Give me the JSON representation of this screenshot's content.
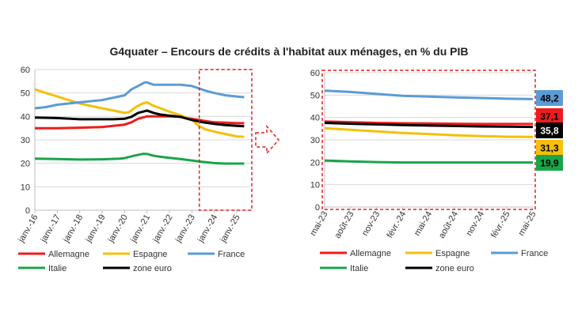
{
  "title": "G4quater – Encours de crédits à l'habitat aux ménages, en % du PIB",
  "colors": {
    "Allemagne": "#ee1c1c",
    "Espagne": "#f5bf0b",
    "France": "#5b9bd5",
    "Italie": "#19a54a",
    "zone euro": "#000000",
    "highlight_box": "#e02020",
    "arrow": "#e02020"
  },
  "chart_data": [
    {
      "type": "line",
      "ylim": [
        0,
        60
      ],
      "yticks": [
        "0",
        "10",
        "20",
        "30",
        "40",
        "50",
        "60"
      ],
      "xlabels": [
        "janv.-16",
        "janv.-17",
        "janv.-18",
        "janv.-19",
        "janv.-20",
        "janv.-21",
        "janv.-22",
        "janv.-23",
        "janv.-24",
        "janv.-25"
      ],
      "xrange": [
        2016.0,
        2025.67
      ],
      "grid": true,
      "highlight_range": [
        2023.33,
        2025.67
      ],
      "series": [
        {
          "name": "Allemagne",
          "x": [
            2016,
            2017,
            2018,
            2019,
            2019.5,
            2020,
            2020.3,
            2020.6,
            2021,
            2021.5,
            2022,
            2022.5,
            2023,
            2023.5,
            2024,
            2024.5,
            2025,
            2025.33
          ],
          "y": [
            35,
            35,
            35.2,
            35.5,
            36,
            36.5,
            37.5,
            39,
            40,
            40,
            40,
            39.8,
            39,
            38.2,
            37.5,
            37.3,
            37.1,
            37.1
          ]
        },
        {
          "name": "Espagne",
          "x": [
            2016,
            2016.5,
            2017,
            2017.5,
            2018,
            2018.5,
            2019,
            2019.5,
            2020,
            2020.2,
            2020.5,
            2020.8,
            2021,
            2021.3,
            2021.6,
            2022,
            2022.5,
            2023,
            2023.3,
            2023.6,
            2024,
            2024.5,
            2025,
            2025.33
          ],
          "y": [
            51.5,
            50,
            48.5,
            47,
            45.5,
            44.5,
            43.5,
            42.5,
            41.5,
            41.8,
            44,
            45.5,
            46,
            44.5,
            43.5,
            42,
            40.5,
            38.5,
            36,
            34.5,
            33.5,
            32.5,
            31.5,
            31.3
          ]
        },
        {
          "name": "France",
          "x": [
            2016,
            2016.5,
            2017,
            2017.5,
            2018,
            2018.5,
            2019,
            2019.5,
            2020,
            2020.3,
            2020.6,
            2020.9,
            2021,
            2021.3,
            2021.6,
            2022,
            2022.5,
            2023,
            2023.3,
            2023.6,
            2024,
            2024.5,
            2025,
            2025.33
          ],
          "y": [
            43.5,
            44,
            45,
            45.5,
            46,
            46.5,
            47,
            48,
            49,
            51.5,
            53,
            54.5,
            54.5,
            53.5,
            53.5,
            53.5,
            53.5,
            53,
            52,
            51,
            50,
            49,
            48.5,
            48.2
          ]
        },
        {
          "name": "Italie",
          "x": [
            2016,
            2017,
            2018,
            2019,
            2019.8,
            2020,
            2020.4,
            2020.8,
            2021,
            2021.3,
            2021.6,
            2022,
            2022.5,
            2023,
            2023.5,
            2024,
            2024.5,
            2025,
            2025.33
          ],
          "y": [
            22,
            21.8,
            21.6,
            21.7,
            22,
            22.2,
            23.2,
            24,
            24,
            23.2,
            22.8,
            22.3,
            21.8,
            21.2,
            20.6,
            20.1,
            19.9,
            19.9,
            19.9
          ]
        },
        {
          "name": "zone euro",
          "x": [
            2016,
            2017,
            2018,
            2019,
            2019.5,
            2020,
            2020.3,
            2020.6,
            2021,
            2021.3,
            2021.6,
            2022,
            2022.5,
            2023,
            2023.5,
            2024,
            2024.5,
            2025,
            2025.33
          ],
          "y": [
            39.5,
            39.3,
            38.8,
            38.8,
            38.8,
            39,
            39.8,
            41.5,
            42.5,
            41.5,
            40.8,
            40.3,
            39.8,
            38.5,
            37.5,
            36.8,
            36.3,
            36,
            35.8
          ]
        }
      ]
    },
    {
      "type": "line",
      "ylim": [
        0,
        60
      ],
      "yticks": [
        "0",
        "10",
        "20",
        "30",
        "40",
        "50",
        "60"
      ],
      "xlabels": [
        "mai-23",
        "août-23",
        "nov-23",
        "févr.-24",
        "mai-24",
        "août-24",
        "nov-24",
        "févr.-25",
        "mai-25"
      ],
      "xrange": [
        0,
        24
      ],
      "grid": true,
      "end_labels": [
        "48,2",
        "37,1",
        "35,8",
        "31,3",
        "19,9"
      ],
      "series": [
        {
          "name": "France",
          "x": [
            0,
            3,
            6,
            9,
            12,
            15,
            18,
            21,
            24
          ],
          "y": [
            52,
            51.4,
            50.5,
            49.7,
            49.3,
            49,
            48.7,
            48.4,
            48.2
          ]
        },
        {
          "name": "Allemagne",
          "x": [
            0,
            3,
            6,
            9,
            12,
            15,
            18,
            21,
            24
          ],
          "y": [
            38.2,
            37.9,
            37.6,
            37.4,
            37.3,
            37.2,
            37.1,
            37.1,
            37.1
          ]
        },
        {
          "name": "zone euro",
          "x": [
            0,
            3,
            6,
            9,
            12,
            15,
            18,
            21,
            24
          ],
          "y": [
            37.6,
            37.2,
            36.9,
            36.6,
            36.4,
            36.2,
            36,
            35.9,
            35.8
          ]
        },
        {
          "name": "Espagne",
          "x": [
            0,
            3,
            6,
            9,
            12,
            15,
            18,
            21,
            24
          ],
          "y": [
            35.2,
            34.5,
            33.8,
            33.1,
            32.6,
            32.1,
            31.7,
            31.4,
            31.3
          ]
        },
        {
          "name": "Italie",
          "x": [
            0,
            3,
            6,
            9,
            12,
            15,
            18,
            21,
            24
          ],
          "y": [
            20.8,
            20.4,
            20.1,
            19.9,
            19.9,
            19.9,
            19.9,
            19.9,
            19.9
          ]
        }
      ]
    }
  ],
  "legend_rows": [
    [
      "Allemagne",
      "Espagne",
      "France"
    ],
    [
      "Italie",
      "zone euro"
    ]
  ]
}
